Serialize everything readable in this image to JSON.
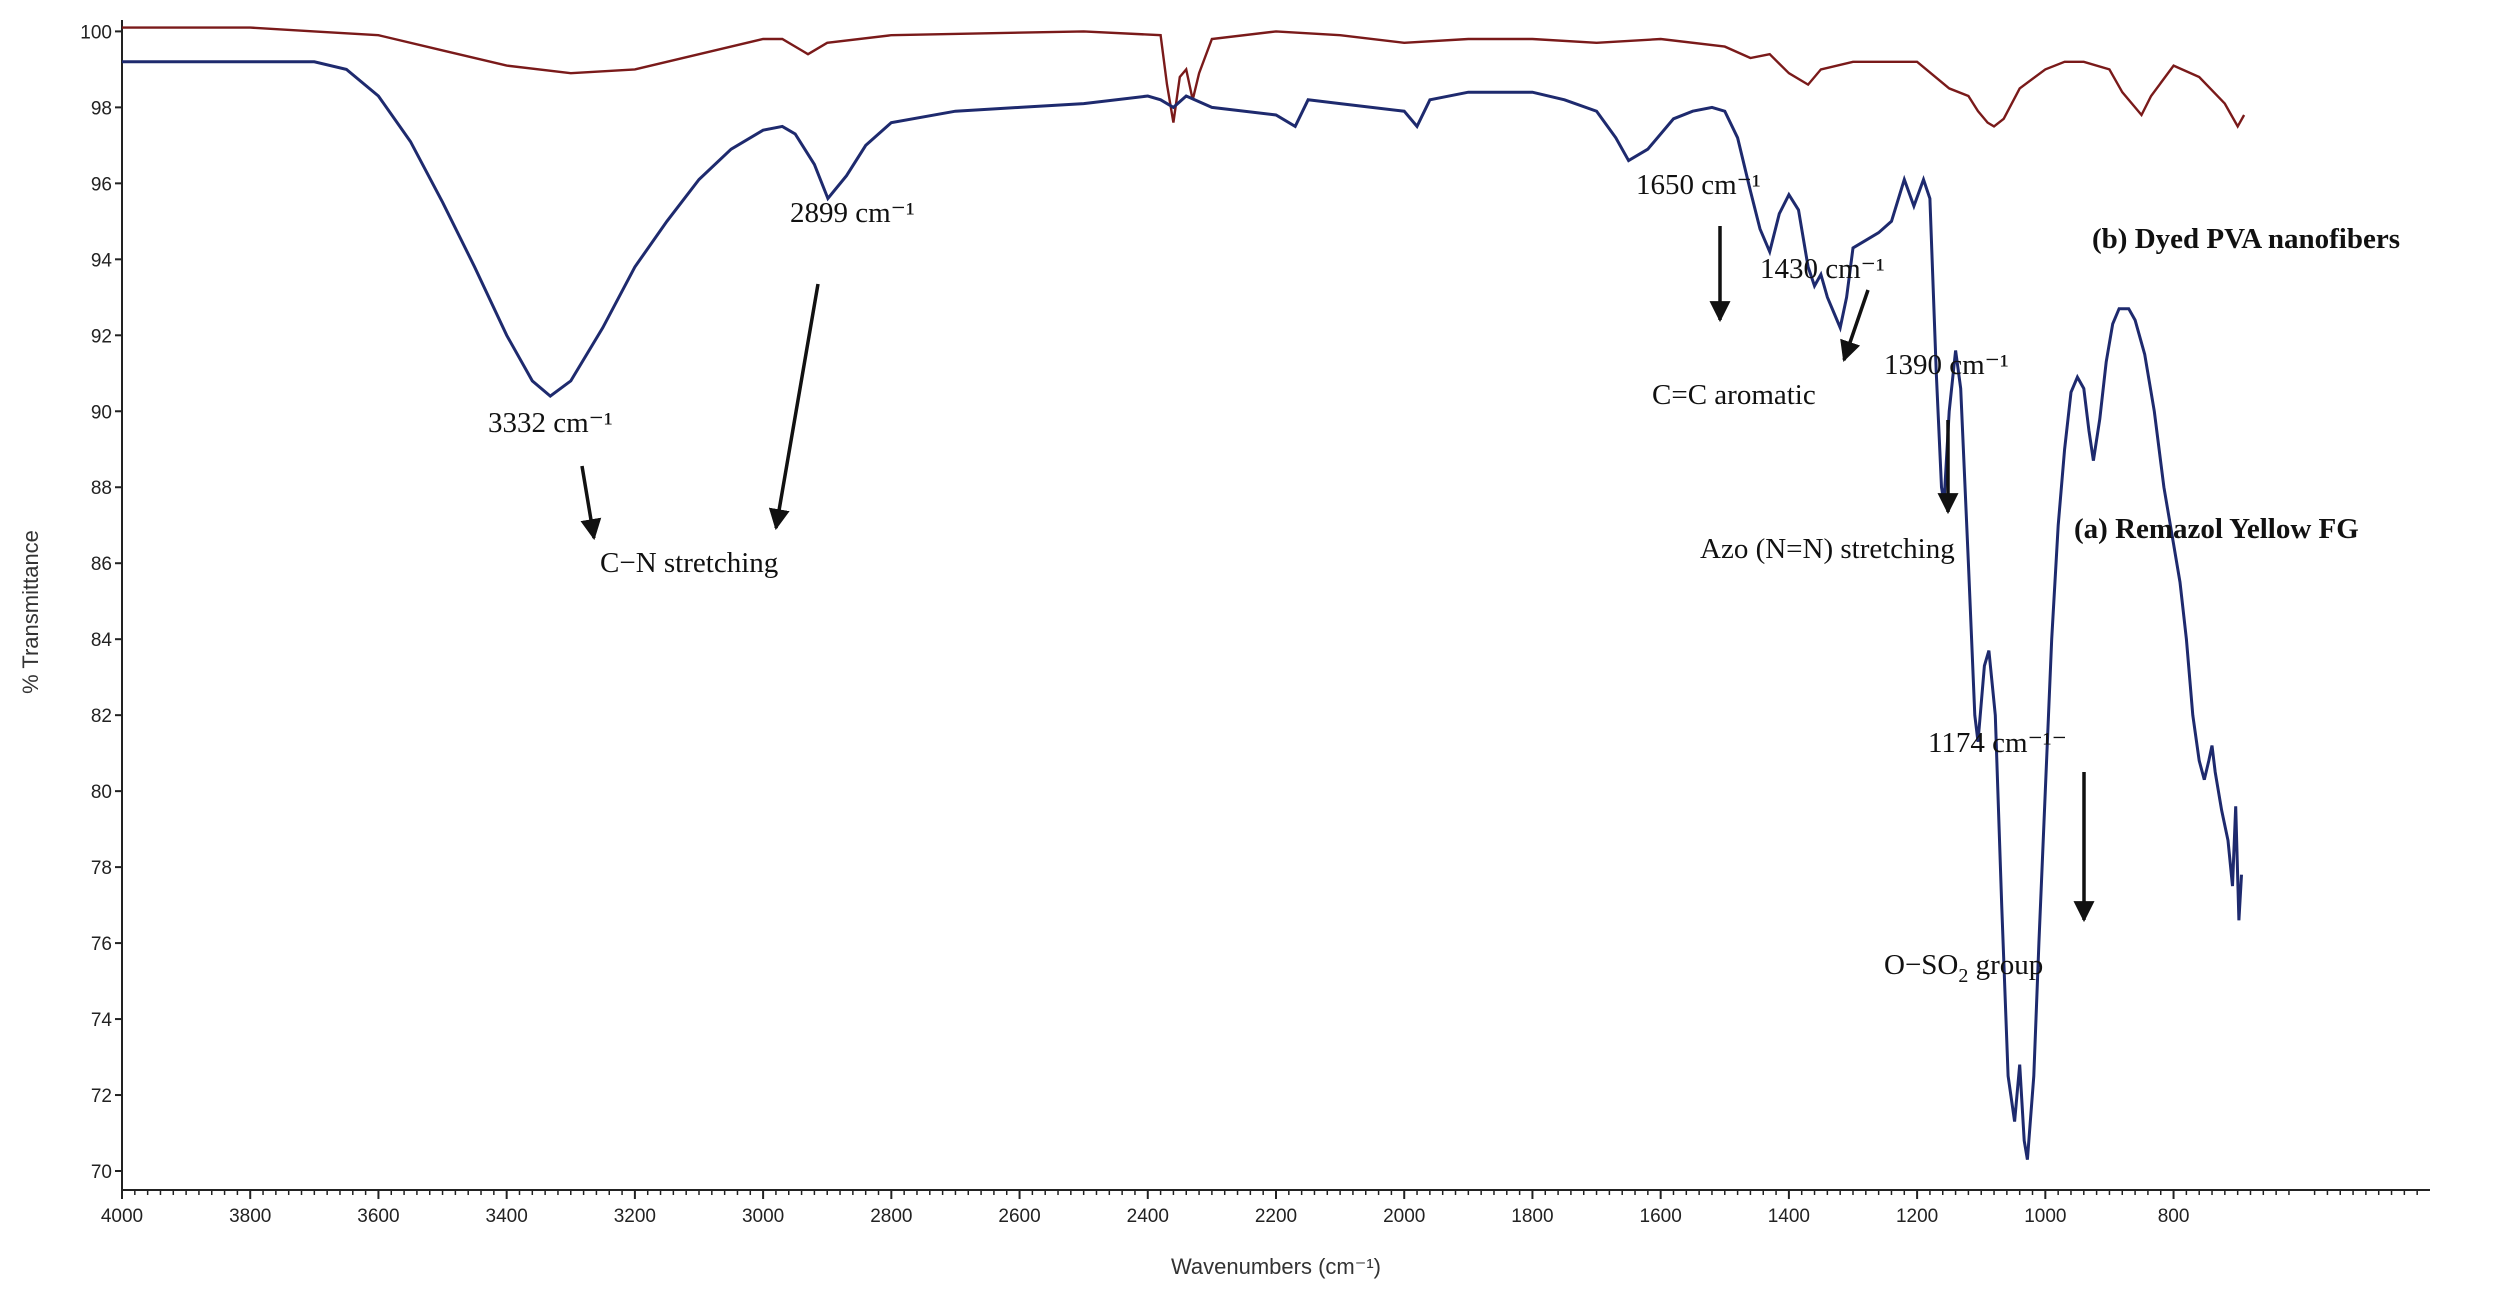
{
  "chart_data": {
    "type": "line",
    "title": "",
    "xlabel": "Wavenumbers (cm⁻¹)",
    "ylabel": "% Transmittance",
    "xlim": [
      4000,
      400
    ],
    "ylim": [
      69.5,
      100.3
    ],
    "x_ticks": [
      4000,
      3800,
      3600,
      3400,
      3200,
      3000,
      2800,
      2600,
      2400,
      2200,
      2000,
      1800,
      1600,
      1400,
      1200,
      1000,
      800
    ],
    "y_ticks": [
      70,
      72,
      74,
      76,
      78,
      80,
      82,
      84,
      86,
      88,
      90,
      92,
      94,
      96,
      98,
      100
    ],
    "grid": false,
    "series": [
      {
        "name": "(a) Remazol Yellow FG",
        "color": "#1e2a6e",
        "points": [
          [
            4000,
            99.2
          ],
          [
            3800,
            99.2
          ],
          [
            3700,
            99.2
          ],
          [
            3650,
            99.0
          ],
          [
            3600,
            98.3
          ],
          [
            3550,
            97.1
          ],
          [
            3500,
            95.5
          ],
          [
            3450,
            93.8
          ],
          [
            3400,
            92.0
          ],
          [
            3360,
            90.8
          ],
          [
            3332,
            90.4
          ],
          [
            3300,
            90.8
          ],
          [
            3250,
            92.2
          ],
          [
            3200,
            93.8
          ],
          [
            3150,
            95.0
          ],
          [
            3100,
            96.1
          ],
          [
            3050,
            96.9
          ],
          [
            3000,
            97.4
          ],
          [
            2970,
            97.5
          ],
          [
            2950,
            97.3
          ],
          [
            2920,
            96.5
          ],
          [
            2899,
            95.6
          ],
          [
            2870,
            96.2
          ],
          [
            2840,
            97.0
          ],
          [
            2800,
            97.6
          ],
          [
            2700,
            97.9
          ],
          [
            2600,
            98.0
          ],
          [
            2500,
            98.1
          ],
          [
            2400,
            98.3
          ],
          [
            2380,
            98.2
          ],
          [
            2360,
            98.0
          ],
          [
            2340,
            98.3
          ],
          [
            2300,
            98.0
          ],
          [
            2200,
            97.8
          ],
          [
            2170,
            97.5
          ],
          [
            2150,
            98.2
          ],
          [
            2100,
            98.1
          ],
          [
            2000,
            97.9
          ],
          [
            1980,
            97.5
          ],
          [
            1960,
            98.2
          ],
          [
            1900,
            98.4
          ],
          [
            1800,
            98.4
          ],
          [
            1750,
            98.2
          ],
          [
            1700,
            97.9
          ],
          [
            1670,
            97.2
          ],
          [
            1650,
            96.6
          ],
          [
            1620,
            96.9
          ],
          [
            1580,
            97.7
          ],
          [
            1550,
            97.9
          ],
          [
            1520,
            98.0
          ],
          [
            1500,
            97.9
          ],
          [
            1480,
            97.2
          ],
          [
            1460,
            95.8
          ],
          [
            1445,
            94.8
          ],
          [
            1430,
            94.2
          ],
          [
            1415,
            95.2
          ],
          [
            1400,
            95.7
          ],
          [
            1385,
            95.3
          ],
          [
            1370,
            93.8
          ],
          [
            1360,
            93.3
          ],
          [
            1350,
            93.6
          ],
          [
            1340,
            93.0
          ],
          [
            1330,
            92.6
          ],
          [
            1320,
            92.2
          ],
          [
            1310,
            93.0
          ],
          [
            1300,
            94.3
          ],
          [
            1280,
            94.5
          ],
          [
            1260,
            94.7
          ],
          [
            1240,
            95.0
          ],
          [
            1220,
            96.1
          ],
          [
            1205,
            95.4
          ],
          [
            1190,
            96.1
          ],
          [
            1180,
            95.6
          ],
          [
            1170,
            91.0
          ],
          [
            1162,
            88.0
          ],
          [
            1158,
            87.6
          ],
          [
            1150,
            90.0
          ],
          [
            1140,
            91.6
          ],
          [
            1132,
            90.6
          ],
          [
            1120,
            86.0
          ],
          [
            1110,
            82.0
          ],
          [
            1105,
            81.3
          ],
          [
            1095,
            83.3
          ],
          [
            1088,
            83.7
          ],
          [
            1078,
            82.0
          ],
          [
            1068,
            77.0
          ],
          [
            1058,
            72.5
          ],
          [
            1048,
            71.3
          ],
          [
            1040,
            72.8
          ],
          [
            1033,
            70.8
          ],
          [
            1028,
            70.3
          ],
          [
            1018,
            72.5
          ],
          [
            1010,
            76.0
          ],
          [
            1000,
            80.0
          ],
          [
            990,
            84.0
          ],
          [
            980,
            87.0
          ],
          [
            970,
            89.0
          ],
          [
            960,
            90.5
          ],
          [
            950,
            90.9
          ],
          [
            940,
            90.6
          ],
          [
            932,
            89.5
          ],
          [
            925,
            88.7
          ],
          [
            915,
            89.8
          ],
          [
            905,
            91.3
          ],
          [
            895,
            92.3
          ],
          [
            885,
            92.7
          ],
          [
            870,
            92.7
          ],
          [
            860,
            92.4
          ],
          [
            845,
            91.5
          ],
          [
            830,
            90.0
          ],
          [
            815,
            88.0
          ],
          [
            800,
            86.5
          ],
          [
            790,
            85.5
          ],
          [
            780,
            84.0
          ],
          [
            770,
            82.0
          ],
          [
            760,
            80.8
          ],
          [
            752,
            80.3
          ],
          [
            745,
            80.8
          ],
          [
            740,
            81.2
          ],
          [
            735,
            80.5
          ],
          [
            725,
            79.5
          ],
          [
            715,
            78.7
          ],
          [
            708,
            77.5
          ],
          [
            703,
            79.6
          ],
          [
            698,
            76.6
          ],
          [
            694,
            77.8
          ]
        ]
      },
      {
        "name": "(b) Dyed PVA nanofibers",
        "color": "#7a1a1a",
        "points": [
          [
            4000,
            100.1
          ],
          [
            3800,
            100.1
          ],
          [
            3700,
            100.0
          ],
          [
            3600,
            99.9
          ],
          [
            3500,
            99.5
          ],
          [
            3400,
            99.1
          ],
          [
            3300,
            98.9
          ],
          [
            3200,
            99.0
          ],
          [
            3100,
            99.4
          ],
          [
            3000,
            99.8
          ],
          [
            2970,
            99.8
          ],
          [
            2940,
            99.5
          ],
          [
            2930,
            99.4
          ],
          [
            2900,
            99.7
          ],
          [
            2800,
            99.9
          ],
          [
            2500,
            100.0
          ],
          [
            2380,
            99.9
          ],
          [
            2370,
            98.6
          ],
          [
            2360,
            97.6
          ],
          [
            2350,
            98.8
          ],
          [
            2340,
            99.0
          ],
          [
            2330,
            98.2
          ],
          [
            2320,
            98.9
          ],
          [
            2300,
            99.8
          ],
          [
            2200,
            100.0
          ],
          [
            2100,
            99.9
          ],
          [
            2000,
            99.7
          ],
          [
            1900,
            99.8
          ],
          [
            1800,
            99.8
          ],
          [
            1700,
            99.7
          ],
          [
            1600,
            99.8
          ],
          [
            1500,
            99.6
          ],
          [
            1460,
            99.3
          ],
          [
            1430,
            99.4
          ],
          [
            1400,
            98.9
          ],
          [
            1370,
            98.6
          ],
          [
            1350,
            99.0
          ],
          [
            1300,
            99.2
          ],
          [
            1250,
            99.2
          ],
          [
            1200,
            99.2
          ],
          [
            1150,
            98.5
          ],
          [
            1120,
            98.3
          ],
          [
            1105,
            97.9
          ],
          [
            1090,
            97.6
          ],
          [
            1080,
            97.5
          ],
          [
            1065,
            97.7
          ],
          [
            1040,
            98.5
          ],
          [
            1000,
            99.0
          ],
          [
            970,
            99.2
          ],
          [
            940,
            99.2
          ],
          [
            900,
            99.0
          ],
          [
            880,
            98.4
          ],
          [
            860,
            98.0
          ],
          [
            850,
            97.8
          ],
          [
            835,
            98.3
          ],
          [
            800,
            99.1
          ],
          [
            760,
            98.8
          ],
          [
            720,
            98.1
          ],
          [
            700,
            97.5
          ],
          [
            690,
            97.8
          ]
        ]
      }
    ],
    "annotations": [
      {
        "text": "3332 cm⁻¹",
        "x": 3332,
        "y": 90.4
      },
      {
        "text": "2899 cm⁻¹",
        "x": 2899,
        "y": 95.6
      },
      {
        "text": "C−N stretching",
        "x": 3100,
        "y": 86.5
      },
      {
        "text": "1650 cm⁻¹",
        "x": 1650,
        "y": 96.6
      },
      {
        "text": "1430 cm⁻¹",
        "x": 1430,
        "y": 94.2
      },
      {
        "text": "C=C aromatic",
        "x": 1520,
        "y": 90.5
      },
      {
        "text": "1390 cm⁻¹",
        "x": 1390,
        "y": 92.2
      },
      {
        "text": "Azo (N=N) stretching",
        "x": 1320,
        "y": 86.8
      },
      {
        "text": "1174 cm⁻¹⁻",
        "x": 1174,
        "y": 81.3
      },
      {
        "text": "O−SO₂ group",
        "x": 1174,
        "y": 75.5
      }
    ]
  },
  "labels": {
    "y_axis_title": "% Transmittance",
    "x_axis_title": "Wavenumbers (cm⁻¹)",
    "series_a": "(a) Remazol Yellow FG",
    "series_b": "(b) Dyed PVA nanofibers",
    "peak_3332": "3332 cm⁻¹",
    "peak_2899": "2899 cm⁻¹",
    "cn_stretching": "C−N stretching",
    "peak_1650": "1650 cm⁻¹",
    "peak_1430": "1430 cm⁻¹",
    "cc_aromatic": "C=C aromatic",
    "peak_1390": "1390 cm⁻¹",
    "azo_stretching": "Azo (N=N) stretching",
    "peak_1174": "1174 cm⁻¹⁻",
    "oso2_prefix": "O−SO",
    "oso2_sub": "2",
    "oso2_suffix": " group"
  }
}
